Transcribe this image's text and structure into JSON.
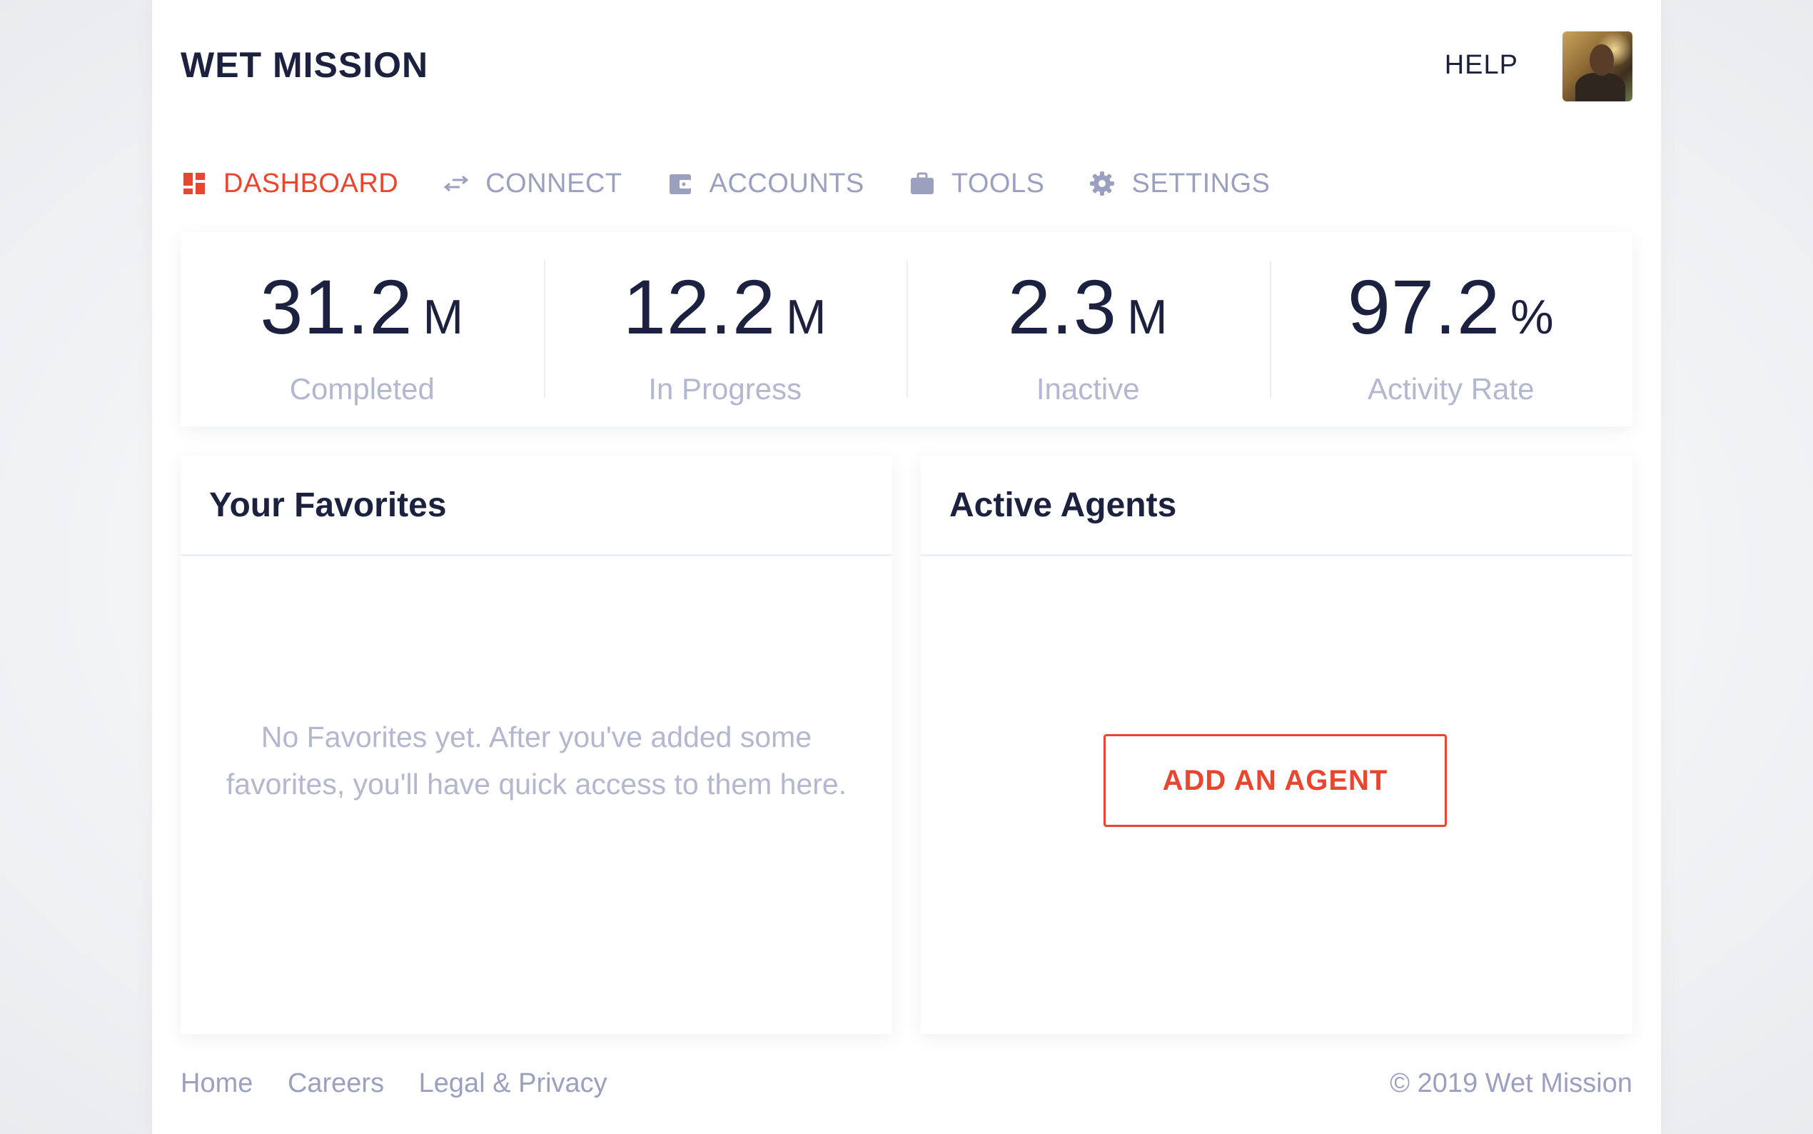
{
  "app": {
    "brand": "WET MISSION",
    "help_label": "HELP",
    "accent_color": "#e8462f",
    "text_dark": "#1c2140",
    "text_muted": "#9ba0bf"
  },
  "nav": {
    "items": [
      {
        "label": "DASHBOARD",
        "icon": "dashboard-icon",
        "active": true
      },
      {
        "label": "CONNECT",
        "icon": "arrows-exchange-icon",
        "active": false
      },
      {
        "label": "ACCOUNTS",
        "icon": "wallet-icon",
        "active": false
      },
      {
        "label": "TOOLS",
        "icon": "briefcase-icon",
        "active": false
      },
      {
        "label": "SETTINGS",
        "icon": "gear-icon",
        "active": false
      }
    ]
  },
  "stats": [
    {
      "value": "31.2",
      "unit": "M",
      "label": "Completed"
    },
    {
      "value": "12.2",
      "unit": "M",
      "label": "In Progress"
    },
    {
      "value": "2.3",
      "unit": "M",
      "label": "Inactive"
    },
    {
      "value": "97.2",
      "unit": "%",
      "label": "Activity Rate"
    }
  ],
  "favorites": {
    "title": "Your Favorites",
    "empty_text": "No Favorites yet. After you've added some favorites, you'll have quick access to them here."
  },
  "agents": {
    "title": "Active Agents",
    "add_button": "ADD AN AGENT"
  },
  "footer": {
    "links": [
      "Home",
      "Careers",
      "Legal & Privacy"
    ],
    "copyright": "© 2019 Wet Mission"
  }
}
